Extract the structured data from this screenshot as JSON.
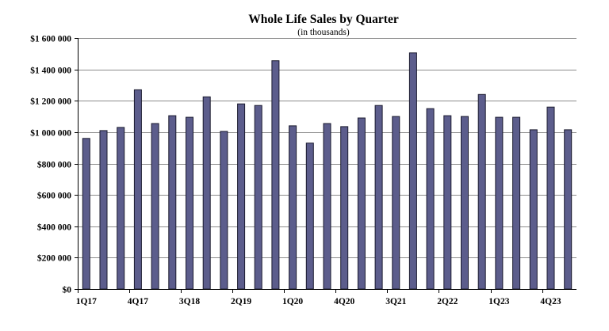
{
  "chart_data": {
    "type": "bar",
    "title": "Whole Life Sales by Quarter",
    "subtitle": "(in thousands)",
    "xlabel": "",
    "ylabel": "",
    "ylim": [
      0,
      1600000
    ],
    "yticks": [
      0,
      200000,
      400000,
      600000,
      800000,
      1000000,
      1200000,
      1400000,
      1600000
    ],
    "ytick_labels": [
      "$0",
      "$200 000",
      "$400 000",
      "$600 000",
      "$800 000",
      "$1 000 000",
      "$1 200 000",
      "$1 400 000",
      "$1 600 000"
    ],
    "categories": [
      "1Q17",
      "2Q17",
      "3Q17",
      "4Q17",
      "1Q18",
      "2Q18",
      "3Q18",
      "4Q18",
      "1Q19",
      "2Q19",
      "3Q19",
      "4Q19",
      "1Q20",
      "2Q20",
      "3Q20",
      "4Q20",
      "1Q21",
      "2Q21",
      "3Q21",
      "4Q21",
      "1Q22",
      "2Q22",
      "3Q22",
      "4Q22",
      "1Q23",
      "2Q23",
      "3Q23",
      "4Q23",
      "1Q24"
    ],
    "x_tick_labels_shown": [
      "1Q17",
      "4Q17",
      "3Q18",
      "2Q19",
      "1Q20",
      "4Q20",
      "3Q21",
      "2Q22",
      "1Q23",
      "4Q23"
    ],
    "values": [
      960000,
      1010000,
      1030000,
      1270000,
      1055000,
      1105000,
      1095000,
      1225000,
      1005000,
      1180000,
      1170000,
      1455000,
      1040000,
      930000,
      1055000,
      1035000,
      1090000,
      1170000,
      1100000,
      1505000,
      1150000,
      1105000,
      1100000,
      1240000,
      1095000,
      1095000,
      1015000,
      1160000,
      1015000
    ],
    "grid": true,
    "bar_color": "#5c5d8c",
    "legend": "none"
  }
}
